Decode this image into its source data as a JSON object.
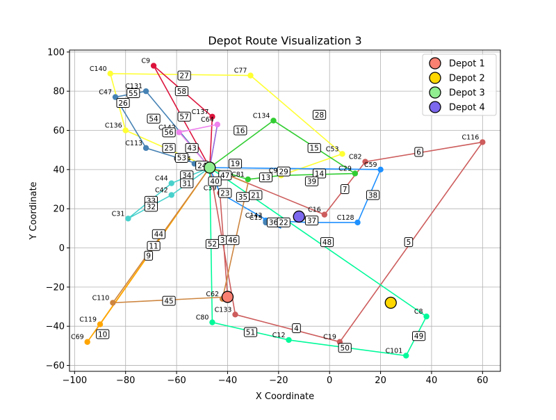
{
  "chart_data": {
    "type": "scatter",
    "title": "Depot Route Visualization 3",
    "xlabel": "X Coordinate",
    "ylabel": "Y Coordinate",
    "xlim": [
      -102,
      67
    ],
    "ylim": [
      -63,
      101
    ],
    "xticks": [
      -100,
      -80,
      -60,
      -40,
      -20,
      0,
      20,
      40,
      60
    ],
    "yticks": [
      -60,
      -40,
      -20,
      0,
      20,
      40,
      60,
      80,
      100
    ],
    "grid": true,
    "legend_position": "top-right",
    "depots": [
      {
        "name": "Depot 1",
        "x": -40,
        "y": -25,
        "color": "#fa8072"
      },
      {
        "name": "Depot 2",
        "x": 24,
        "y": -28,
        "color": "#ffd700"
      },
      {
        "name": "Depot 3",
        "x": -47,
        "y": 41,
        "color": "#90ee90"
      },
      {
        "name": "Depot 4",
        "x": -12,
        "y": 16,
        "color": "#7b68ee"
      }
    ],
    "customers": [
      {
        "name": "C140",
        "x": -86,
        "y": 89
      },
      {
        "name": "C9",
        "x": -69,
        "y": 93
      },
      {
        "name": "C77",
        "x": -31,
        "y": 88
      },
      {
        "name": "C131",
        "x": -72,
        "y": 80
      },
      {
        "name": "C47",
        "x": -84,
        "y": 77
      },
      {
        "name": "C137",
        "x": -46,
        "y": 67
      },
      {
        "name": "C134",
        "x": -22,
        "y": 65
      },
      {
        "name": "C64",
        "x": -44,
        "y": 63
      },
      {
        "name": "C136",
        "x": -80,
        "y": 60
      },
      {
        "name": "C142",
        "x": -59,
        "y": 59
      },
      {
        "name": "C113",
        "x": -72,
        "y": 51
      },
      {
        "name": "C53",
        "x": 5,
        "y": 48
      },
      {
        "name": "C116",
        "x": 60,
        "y": 54
      },
      {
        "name": "C82",
        "x": 14,
        "y": 44
      },
      {
        "name": "C124",
        "x": -53,
        "y": 43
      },
      {
        "name": "C59",
        "x": 20,
        "y": 40
      },
      {
        "name": "C29",
        "x": 10,
        "y": 38
      },
      {
        "name": "C9_",
        "x": -19,
        "y": 37
      },
      {
        "name": "C44",
        "x": -62,
        "y": 33
      },
      {
        "name": "C81",
        "x": -32,
        "y": 35
      },
      {
        "name": "C42",
        "x": -62,
        "y": 27
      },
      {
        "name": "C39",
        "x": -43,
        "y": 28
      },
      {
        "name": "C31",
        "x": -79,
        "y": 15
      },
      {
        "name": "C16",
        "x": -2,
        "y": 17
      },
      {
        "name": "C143",
        "x": -25,
        "y": 14
      },
      {
        "name": "C128",
        "x": 11,
        "y": 13
      },
      {
        "name": "C15",
        "x": -25,
        "y": 13
      },
      {
        "name": "C4",
        "x": -8,
        "y": 13
      },
      {
        "name": "C62",
        "x": -42,
        "y": -26
      },
      {
        "name": "C110",
        "x": -85,
        "y": -28
      },
      {
        "name": "C133",
        "x": -37,
        "y": -34
      },
      {
        "name": "C8",
        "x": 38,
        "y": -35
      },
      {
        "name": "C119",
        "x": -90,
        "y": -39
      },
      {
        "name": "C80",
        "x": -46,
        "y": -38
      },
      {
        "name": "C12",
        "x": -16,
        "y": -47
      },
      {
        "name": "C19",
        "x": 4,
        "y": -48
      },
      {
        "name": "C69",
        "x": -95,
        "y": -48
      },
      {
        "name": "C101",
        "x": 30,
        "y": -55
      }
    ],
    "routes": [
      {
        "color": "#ffff33",
        "points": [
          [
            -47,
            41
          ],
          [
            -80,
            60
          ],
          [
            -86,
            89
          ],
          [
            -31,
            88
          ],
          [
            5,
            48
          ],
          [
            -19,
            37
          ]
        ]
      },
      {
        "color": "#dc143c",
        "points": [
          [
            -47,
            41
          ],
          [
            -69,
            93
          ],
          [
            -46,
            67
          ],
          [
            -47,
            41
          ]
        ]
      },
      {
        "color": "#4682b4",
        "points": [
          [
            -47,
            41
          ],
          [
            -72,
            80
          ],
          [
            -84,
            77
          ],
          [
            -72,
            51
          ],
          [
            -47,
            41
          ]
        ]
      },
      {
        "color": "#32cd32",
        "points": [
          [
            -47,
            41
          ],
          [
            -22,
            65
          ],
          [
            10,
            38
          ],
          [
            -19,
            37
          ],
          [
            -32,
            35
          ],
          [
            -47,
            41
          ]
        ]
      },
      {
        "color": "#cd5c5c",
        "points": [
          [
            -40,
            -25
          ],
          [
            -43,
            28
          ],
          [
            -47,
            41
          ]
        ]
      },
      {
        "color": "#cd5c5c",
        "points": [
          [
            -47,
            41
          ],
          [
            -2,
            17
          ],
          [
            14,
            44
          ],
          [
            60,
            54
          ],
          [
            4,
            -48
          ],
          [
            -37,
            -34
          ],
          [
            -47,
            41
          ]
        ]
      },
      {
        "color": "#1e90ff",
        "points": [
          [
            -47,
            41
          ],
          [
            20,
            40
          ],
          [
            11,
            13
          ],
          [
            -8,
            13
          ],
          [
            -25,
            14
          ],
          [
            -19,
            10
          ],
          [
            -43,
            28
          ],
          [
            -47,
            41
          ]
        ]
      },
      {
        "color": "#00fa9a",
        "points": [
          [
            -47,
            41
          ],
          [
            38,
            -35
          ],
          [
            30,
            -55
          ],
          [
            -16,
            -47
          ],
          [
            -46,
            -38
          ],
          [
            -47,
            41
          ]
        ]
      },
      {
        "color": "#ffa500",
        "points": [
          [
            -47,
            41
          ],
          [
            -90,
            -39
          ],
          [
            -95,
            -48
          ],
          [
            -47,
            41
          ]
        ]
      },
      {
        "color": "#cd853f",
        "points": [
          [
            -40,
            -25
          ],
          [
            -85,
            -28
          ],
          [
            -47,
            41
          ],
          [
            -32,
            33
          ],
          [
            -42,
            -26
          ]
        ]
      },
      {
        "color": "#48d1cc",
        "points": [
          [
            -47,
            41
          ],
          [
            -62,
            33
          ],
          [
            -79,
            15
          ],
          [
            -62,
            27
          ],
          [
            -47,
            41
          ]
        ]
      },
      {
        "color": "#ee82ee",
        "points": [
          [
            -47,
            41
          ],
          [
            -59,
            59
          ],
          [
            -44,
            63
          ],
          [
            -47,
            41
          ]
        ]
      },
      {
        "color": "#9370db",
        "points": [
          [
            -47,
            41
          ],
          [
            -44,
            63
          ],
          [
            -47,
            41
          ]
        ]
      }
    ],
    "route_labels": [
      {
        "text": "27",
        "x": -57,
        "y": 88
      },
      {
        "text": "58",
        "x": -58,
        "y": 80
      },
      {
        "text": "55",
        "x": -77,
        "y": 79
      },
      {
        "text": "26",
        "x": -81,
        "y": 74
      },
      {
        "text": "57",
        "x": -57,
        "y": 67
      },
      {
        "text": "28",
        "x": -4,
        "y": 68
      },
      {
        "text": "54",
        "x": -69,
        "y": 66
      },
      {
        "text": "16",
        "x": -35,
        "y": 60
      },
      {
        "text": "56",
        "x": -63,
        "y": 59
      },
      {
        "text": "15",
        "x": -6,
        "y": 51
      },
      {
        "text": "6",
        "x": 35,
        "y": 49
      },
      {
        "text": "25",
        "x": -63,
        "y": 51
      },
      {
        "text": "43",
        "x": -54,
        "y": 51
      },
      {
        "text": "53",
        "x": -58,
        "y": 46
      },
      {
        "text": "24",
        "x": -50,
        "y": 42
      },
      {
        "text": "19",
        "x": -37,
        "y": 43
      },
      {
        "text": "29",
        "x": -18,
        "y": 39
      },
      {
        "text": "14",
        "x": -4,
        "y": 38
      },
      {
        "text": "47",
        "x": -41,
        "y": 37
      },
      {
        "text": "34",
        "x": -56,
        "y": 37
      },
      {
        "text": "40",
        "x": -45,
        "y": 34
      },
      {
        "text": "31",
        "x": -56,
        "y": 33
      },
      {
        "text": "13",
        "x": -25,
        "y": 36
      },
      {
        "text": "39",
        "x": -7,
        "y": 34
      },
      {
        "text": "7",
        "x": 6,
        "y": 30
      },
      {
        "text": "23",
        "x": -41,
        "y": 28
      },
      {
        "text": "21",
        "x": -29,
        "y": 27
      },
      {
        "text": "35",
        "x": -34,
        "y": 26
      },
      {
        "text": "38",
        "x": 17,
        "y": 27
      },
      {
        "text": "33",
        "x": -70,
        "y": 24
      },
      {
        "text": "32",
        "x": -70,
        "y": 21
      },
      {
        "text": "36",
        "x": -22,
        "y": 13
      },
      {
        "text": "22",
        "x": -18,
        "y": 13
      },
      {
        "text": "37",
        "x": -7,
        "y": 14
      },
      {
        "text": "44",
        "x": -67,
        "y": 7
      },
      {
        "text": "3",
        "x": -42,
        "y": 4
      },
      {
        "text": "46",
        "x": -38,
        "y": 4
      },
      {
        "text": "48",
        "x": -1,
        "y": 3
      },
      {
        "text": "5",
        "x": 31,
        "y": 3
      },
      {
        "text": "52",
        "x": -46,
        "y": 2
      },
      {
        "text": "11",
        "x": -69,
        "y": 1
      },
      {
        "text": "9",
        "x": -71,
        "y": -4
      },
      {
        "text": "45",
        "x": -63,
        "y": -27
      },
      {
        "text": "4",
        "x": -13,
        "y": -41
      },
      {
        "text": "51",
        "x": -31,
        "y": -43
      },
      {
        "text": "49",
        "x": 35,
        "y": -45
      },
      {
        "text": "10",
        "x": -89,
        "y": -44
      },
      {
        "text": "50",
        "x": 6,
        "y": -51
      }
    ]
  }
}
